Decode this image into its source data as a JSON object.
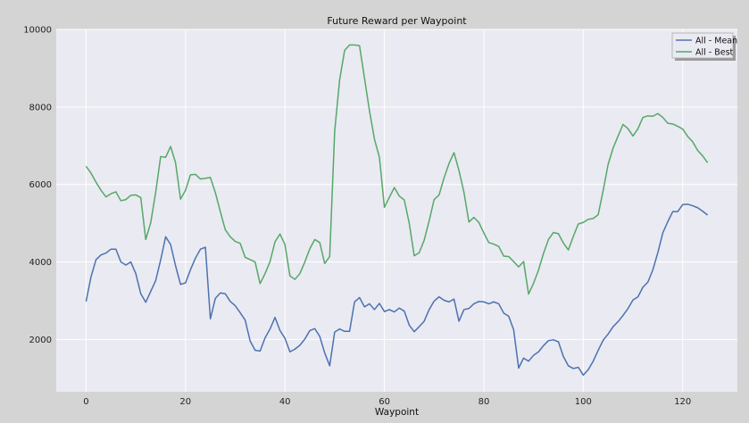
{
  "chart_data": {
    "type": "line",
    "title": "Future Reward per Waypoint",
    "xlabel": "Waypoint",
    "ylabel": "",
    "xlim": [
      -6,
      131
    ],
    "ylim": [
      650,
      10000
    ],
    "xticks": [
      0,
      20,
      40,
      60,
      80,
      100,
      120
    ],
    "yticks": [
      2000,
      4000,
      6000,
      8000,
      10000
    ],
    "grid": true,
    "legend_position": "top-right",
    "series": [
      {
        "name": "All - Mean",
        "color": "#4c72b0",
        "x": [
          0,
          1,
          2,
          3,
          4,
          5,
          6,
          7,
          8,
          9,
          10,
          11,
          12,
          13,
          14,
          15,
          16,
          17,
          18,
          19,
          20,
          21,
          22,
          23,
          24,
          25,
          26,
          27,
          28,
          29,
          30,
          31,
          32,
          33,
          34,
          35,
          36,
          37,
          38,
          39,
          40,
          41,
          42,
          43,
          44,
          45,
          46,
          47,
          48,
          49,
          50,
          51,
          52,
          53,
          54,
          55,
          56,
          57,
          58,
          59,
          60,
          61,
          62,
          63,
          64,
          65,
          66,
          67,
          68,
          69,
          70,
          71,
          72,
          73,
          74,
          75,
          76,
          77,
          78,
          79,
          80,
          81,
          82,
          83,
          84,
          85,
          86,
          87,
          88,
          89,
          90,
          91,
          92,
          93,
          94,
          95,
          96,
          97,
          98,
          99,
          100,
          101,
          102,
          103,
          104,
          105,
          106,
          107,
          108,
          109,
          110,
          111,
          112,
          113,
          114,
          115,
          116,
          117,
          118,
          119,
          120,
          121,
          122,
          123,
          124,
          125
        ],
        "values": [
          2980,
          3620,
          4060,
          4180,
          4230,
          4330,
          4330,
          4000,
          3920,
          4000,
          3700,
          3180,
          2960,
          3240,
          3520,
          4050,
          4650,
          4450,
          3900,
          3420,
          3460,
          3800,
          4100,
          4330,
          4380,
          2530,
          3060,
          3200,
          3180,
          2980,
          2870,
          2690,
          2500,
          1960,
          1720,
          1700,
          2040,
          2270,
          2570,
          2230,
          2030,
          1680,
          1750,
          1850,
          2010,
          2230,
          2280,
          2080,
          1650,
          1320,
          2190,
          2270,
          2210,
          2210,
          2970,
          3080,
          2840,
          2920,
          2770,
          2930,
          2720,
          2770,
          2710,
          2810,
          2730,
          2370,
          2200,
          2330,
          2470,
          2770,
          2990,
          3100,
          3010,
          2970,
          3040,
          2470,
          2770,
          2800,
          2920,
          2980,
          2970,
          2920,
          2970,
          2920,
          2680,
          2600,
          2250,
          1260,
          1520,
          1440,
          1590,
          1680,
          1840,
          1970,
          1990,
          1940,
          1560,
          1320,
          1250,
          1280,
          1080,
          1220,
          1440,
          1720,
          1980,
          2140,
          2330,
          2460,
          2620,
          2800,
          3020,
          3100,
          3350,
          3480,
          3800,
          4240,
          4750,
          5040,
          5300,
          5300,
          5480,
          5490,
          5450,
          5400,
          5310,
          5210
        ]
      },
      {
        "name": "All - Best",
        "color": "#55a868",
        "x": [
          0,
          1,
          2,
          3,
          4,
          5,
          6,
          7,
          8,
          9,
          10,
          11,
          12,
          13,
          14,
          15,
          16,
          17,
          18,
          19,
          20,
          21,
          22,
          23,
          24,
          25,
          26,
          27,
          28,
          29,
          30,
          31,
          32,
          33,
          34,
          35,
          36,
          37,
          38,
          39,
          40,
          41,
          42,
          43,
          44,
          45,
          46,
          47,
          48,
          49,
          50,
          51,
          52,
          53,
          54,
          55,
          56,
          57,
          58,
          59,
          60,
          61,
          62,
          63,
          64,
          65,
          66,
          67,
          68,
          69,
          70,
          71,
          72,
          73,
          74,
          75,
          76,
          77,
          78,
          79,
          80,
          81,
          82,
          83,
          84,
          85,
          86,
          87,
          88,
          89,
          90,
          91,
          92,
          93,
          94,
          95,
          96,
          97,
          98,
          99,
          100,
          101,
          102,
          103,
          104,
          105,
          106,
          107,
          108,
          109,
          110,
          111,
          112,
          113,
          114,
          115,
          116,
          117,
          118,
          119,
          120,
          121,
          122,
          123,
          124,
          125
        ],
        "values": [
          6470,
          6290,
          6060,
          5850,
          5680,
          5760,
          5810,
          5580,
          5610,
          5720,
          5730,
          5660,
          4580,
          5010,
          5800,
          6720,
          6700,
          6980,
          6560,
          5620,
          5850,
          6250,
          6260,
          6140,
          6160,
          6180,
          5790,
          5300,
          4830,
          4650,
          4530,
          4480,
          4120,
          4060,
          4000,
          3440,
          3700,
          4010,
          4520,
          4720,
          4450,
          3640,
          3550,
          3700,
          4000,
          4340,
          4580,
          4500,
          3960,
          4140,
          7370,
          8700,
          9460,
          9600,
          9600,
          9580,
          8740,
          7900,
          7170,
          6700,
          5410,
          5670,
          5920,
          5700,
          5600,
          5000,
          4160,
          4240,
          4560,
          5060,
          5610,
          5730,
          6170,
          6540,
          6820,
          6360,
          5800,
          5030,
          5150,
          5020,
          4750,
          4500,
          4460,
          4400,
          4150,
          4140,
          4010,
          3870,
          4010,
          3170,
          3450,
          3790,
          4220,
          4580,
          4760,
          4730,
          4490,
          4310,
          4660,
          4980,
          5020,
          5100,
          5120,
          5220,
          5840,
          6520,
          6940,
          7250,
          7550,
          7440,
          7250,
          7440,
          7730,
          7770,
          7760,
          7830,
          7730,
          7580,
          7560,
          7500,
          7430,
          7240,
          7100,
          6880,
          6740,
          6560
        ]
      }
    ]
  }
}
